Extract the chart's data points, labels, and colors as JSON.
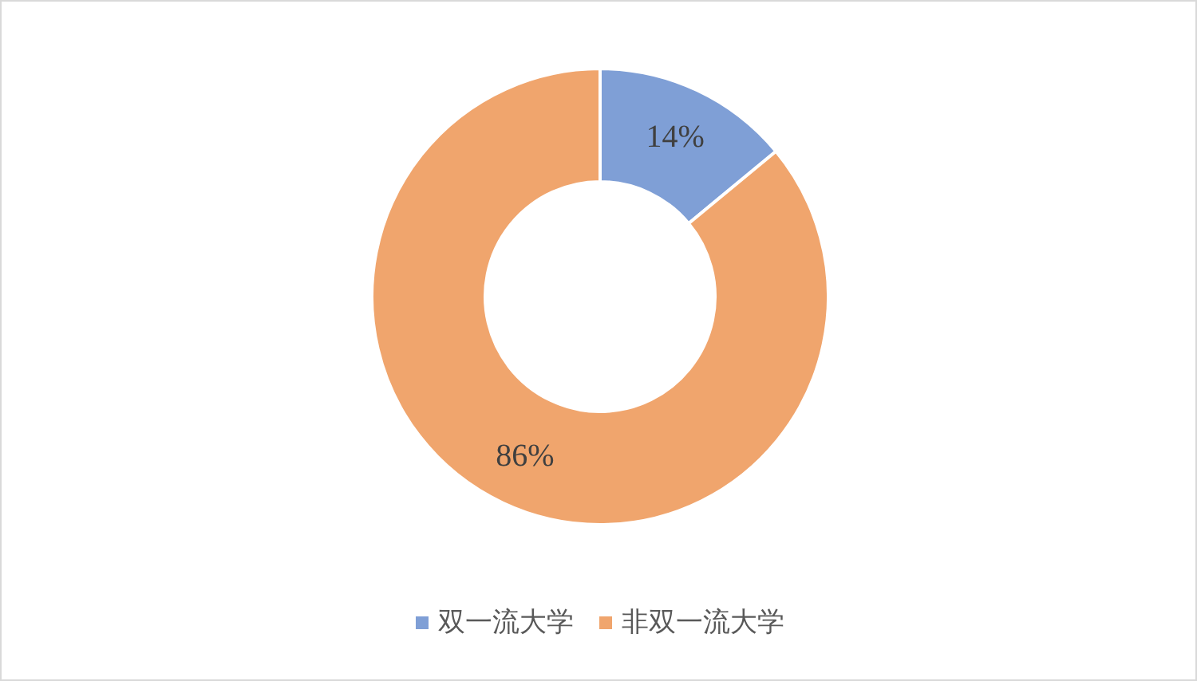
{
  "chart_data": {
    "type": "donut",
    "categories": [
      "双一流大学",
      "非双一流大学"
    ],
    "values": [
      14,
      86
    ],
    "colors": [
      "#7f9fd6",
      "#f0a56d"
    ],
    "value_labels": [
      "14%",
      "86%"
    ],
    "legend": "bottom"
  }
}
